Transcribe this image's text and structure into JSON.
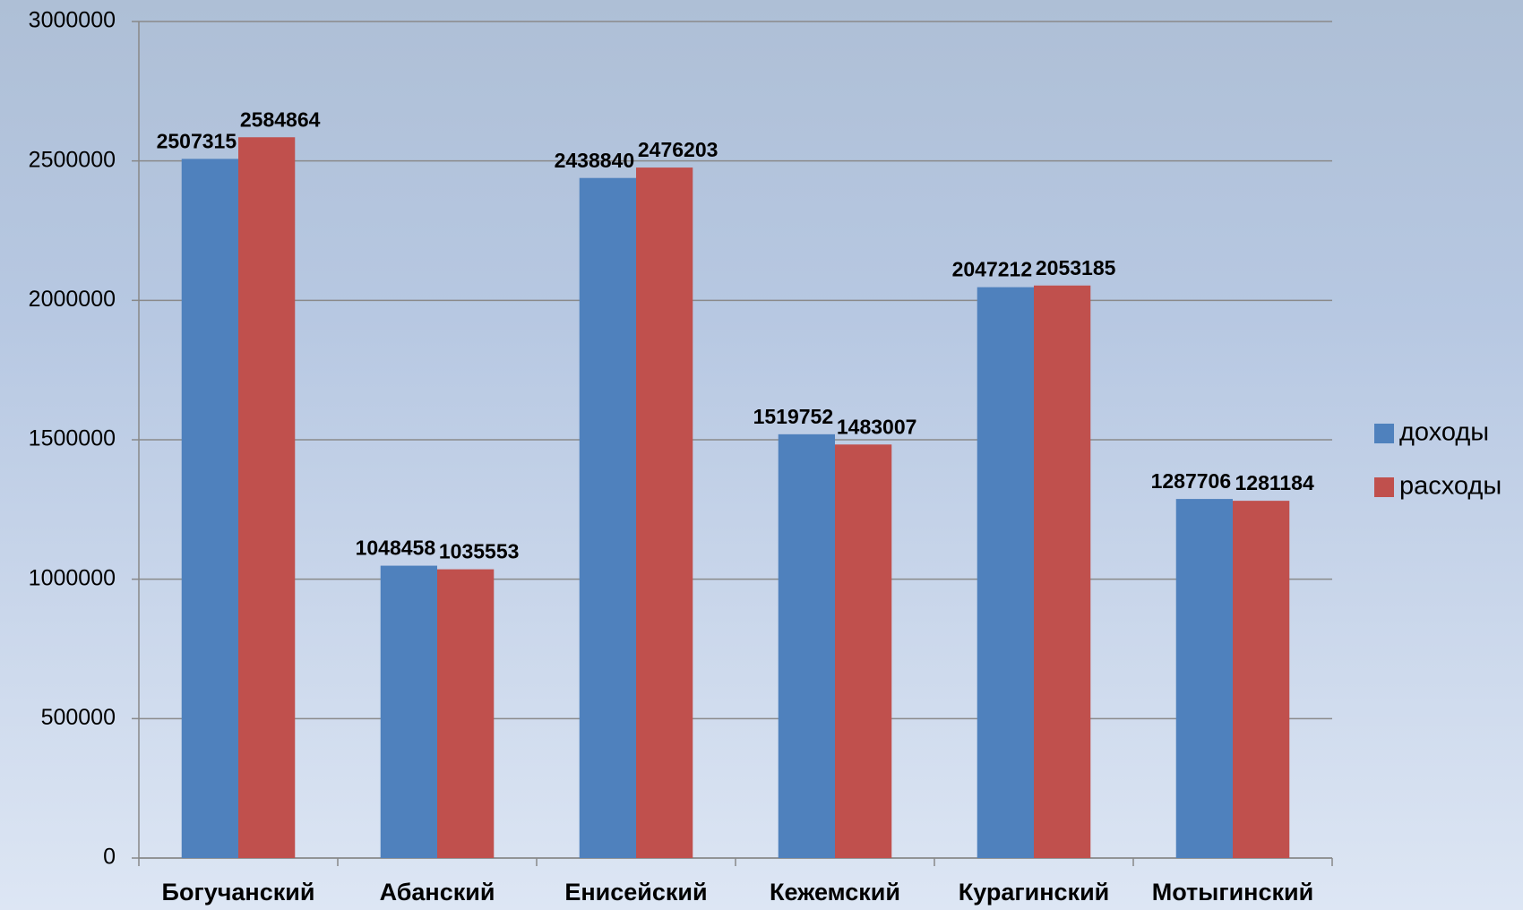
{
  "chart_data": {
    "type": "bar",
    "categories": [
      "Богучанский",
      "Абанский",
      "Енисейский",
      "Кежемский",
      "Курагинский",
      "Мотыгинский"
    ],
    "series": [
      {
        "name": "доходы",
        "color": "#4f81bd",
        "values": [
          2507315,
          1048458,
          2438840,
          1519752,
          2047212,
          1287706
        ]
      },
      {
        "name": "расходы",
        "color": "#c0504d",
        "values": [
          2584864,
          1035553,
          2476203,
          1483007,
          2053185,
          1281184
        ]
      }
    ],
    "ylim": [
      0,
      3000000
    ],
    "yticks": [
      0,
      500000,
      1000000,
      1500000,
      2000000,
      2500000,
      3000000
    ],
    "grid": true,
    "legend": "right"
  }
}
